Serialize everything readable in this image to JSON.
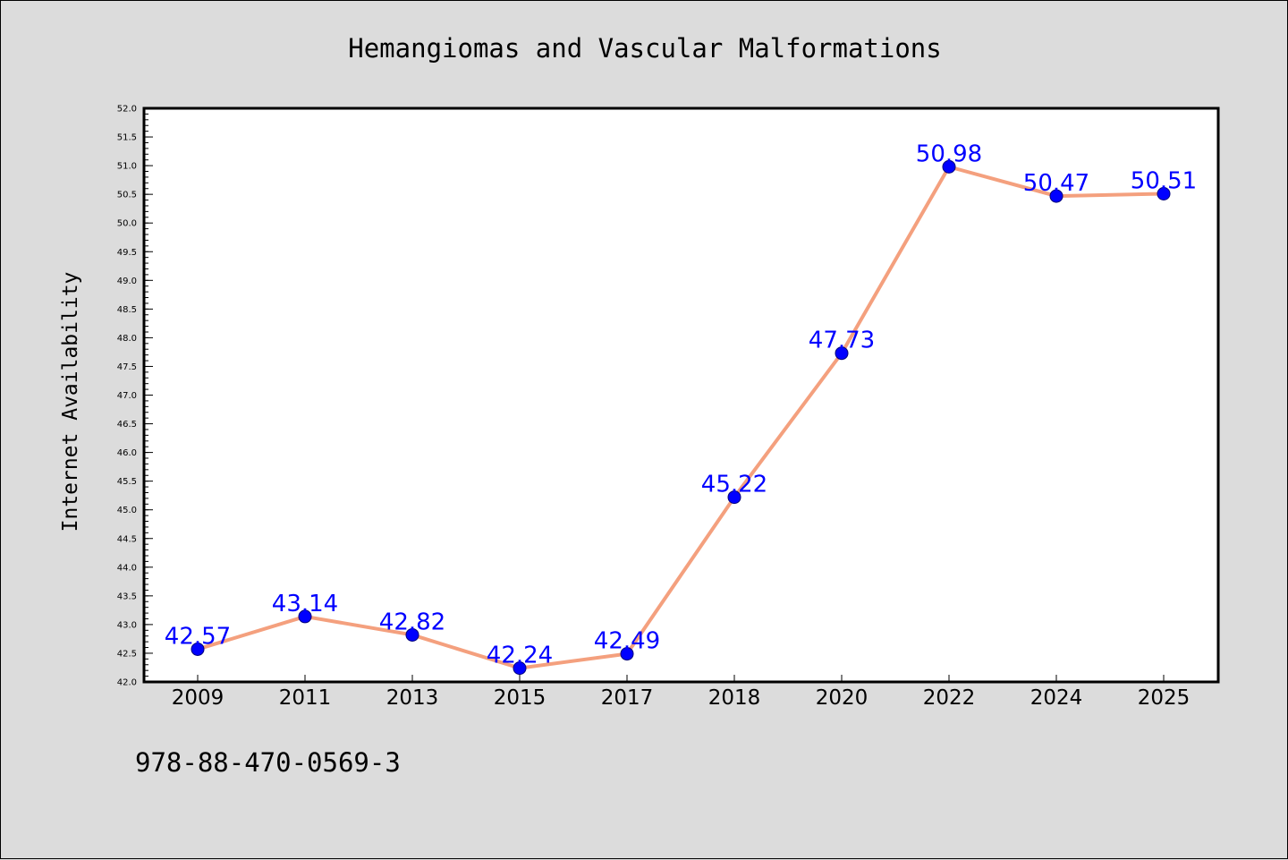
{
  "chart_data": {
    "type": "line",
    "title": "Hemangiomas and Vascular Malformations",
    "xlabel": "",
    "ylabel": "Internet Availability",
    "categories": [
      "2009",
      "2011",
      "2013",
      "2015",
      "2017",
      "2018",
      "2020",
      "2022",
      "2024",
      "2025"
    ],
    "values": [
      42.57,
      43.14,
      42.82,
      42.24,
      42.49,
      45.22,
      47.73,
      50.98,
      50.47,
      50.51
    ],
    "data_labels": [
      "42.57",
      "43.14",
      "42.82",
      "42.24",
      "42.49",
      "45.22",
      "47.73",
      "50.98",
      "50.47",
      "50.51"
    ],
    "ylim": [
      42.0,
      52.0
    ],
    "yticks": [
      "42.0",
      "42.5",
      "43.0",
      "43.5",
      "44.0",
      "44.5",
      "45.0",
      "45.5",
      "46.0",
      "46.5",
      "47.0",
      "47.5",
      "48.0",
      "48.5",
      "49.0",
      "49.5",
      "50.0",
      "50.5",
      "51.0",
      "51.5",
      "52.0"
    ],
    "grid": false,
    "legend": "none",
    "line_color": "#f4a07e",
    "marker_color": "#0000ff",
    "label_color": "#0000ff",
    "background_color": "#dcdcdc",
    "plot_background": "#ffffff"
  },
  "annotation": "978-88-470-0569-3"
}
